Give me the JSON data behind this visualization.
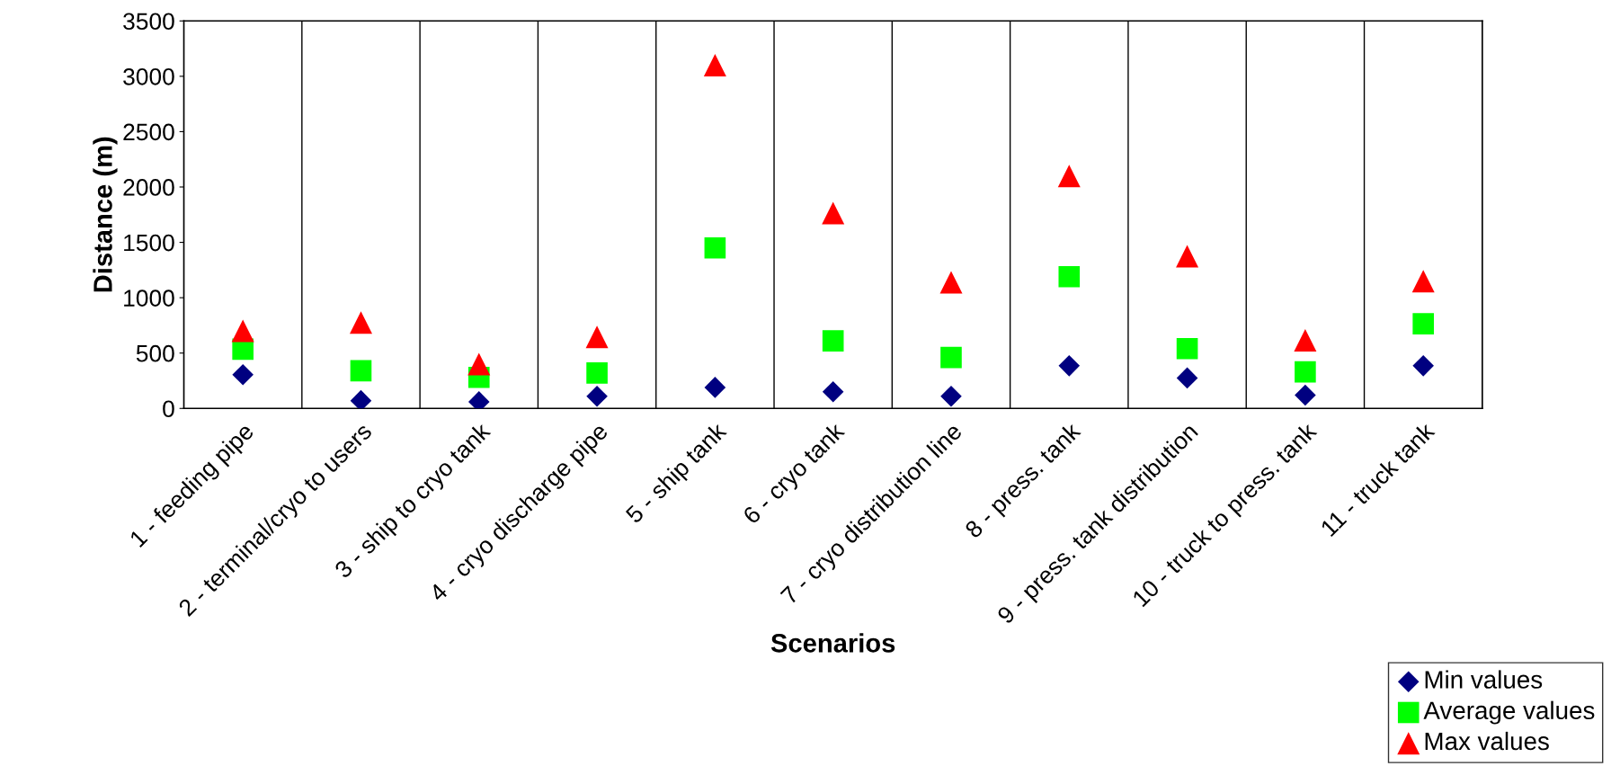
{
  "chart_data": {
    "type": "scatter",
    "xlabel": "Scenarios",
    "ylabel": "Distance (m)",
    "categories": [
      "1 - feeding pipe",
      "2 - terminal/cryo to users",
      "3 - ship to cryo tank",
      "4 - cryo discharge pipe",
      "5 - ship tank",
      "6 - cryo tank",
      "7 - cryo distribution line",
      "8 - press. tank",
      "9 - press. tank distribution",
      "10 - truck to press. tank",
      "11 - truck tank"
    ],
    "series": [
      {
        "name": "Min values",
        "color": "#000080",
        "marker": "diamond",
        "values": [
          305,
          70,
          60,
          110,
          190,
          150,
          110,
          385,
          275,
          120,
          385
        ]
      },
      {
        "name": "Average values",
        "color": "#00ff00",
        "marker": "square",
        "values": [
          535,
          340,
          280,
          320,
          1450,
          610,
          460,
          1190,
          540,
          330,
          765
        ]
      },
      {
        "name": "Max values",
        "color": "#ff0000",
        "marker": "triangle",
        "values": [
          700,
          775,
          400,
          645,
          3100,
          1765,
          1140,
          2100,
          1375,
          615,
          1150
        ]
      }
    ],
    "ylim": [
      0,
      3500
    ],
    "yticks": [
      0,
      500,
      1000,
      1500,
      2000,
      2500,
      3000,
      3500
    ],
    "grid": "x",
    "legend": "bottom right"
  }
}
